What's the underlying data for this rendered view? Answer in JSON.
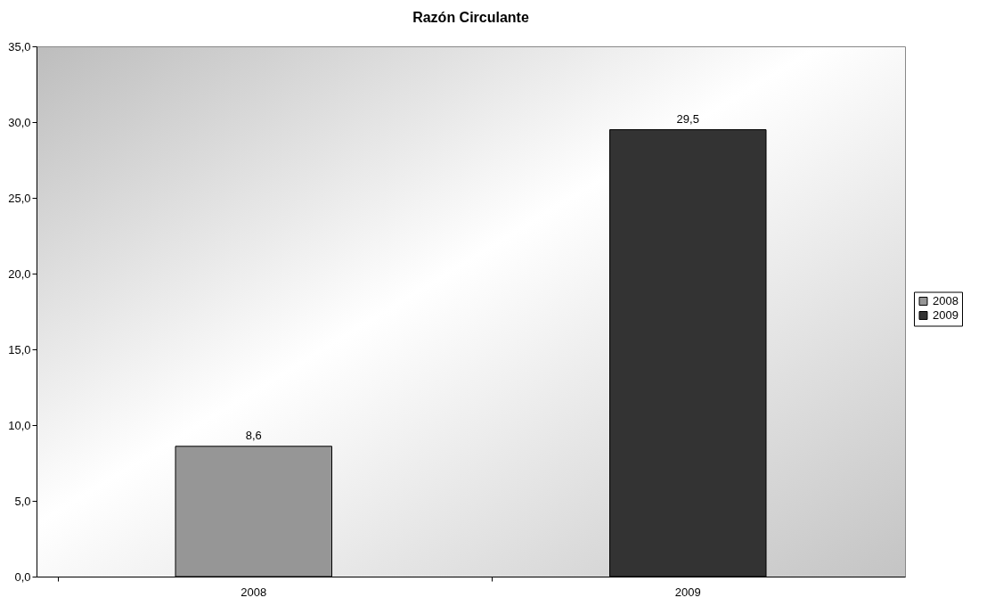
{
  "chart_data": {
    "type": "bar",
    "title": "Razón Circulante",
    "categories": [
      "2008",
      "2009"
    ],
    "series": [
      {
        "name": "2008",
        "color": "#969696",
        "values": [
          8.6,
          null
        ],
        "value_labels": [
          "8,6",
          null
        ]
      },
      {
        "name": "2009",
        "color": "#333333",
        "values": [
          null,
          29.5
        ],
        "value_labels": [
          null,
          "29,5"
        ]
      }
    ],
    "ylim": [
      0,
      35
    ],
    "yticks": [
      {
        "value": 0,
        "label": "0,0"
      },
      {
        "value": 5,
        "label": "5,0"
      },
      {
        "value": 10,
        "label": "10,0"
      },
      {
        "value": 15,
        "label": "15,0"
      },
      {
        "value": 20,
        "label": "20,0"
      },
      {
        "value": 25,
        "label": "25,0"
      },
      {
        "value": 30,
        "label": "30,0"
      },
      {
        "value": 35,
        "label": "35,0"
      }
    ],
    "grid": false,
    "legend": "right"
  }
}
